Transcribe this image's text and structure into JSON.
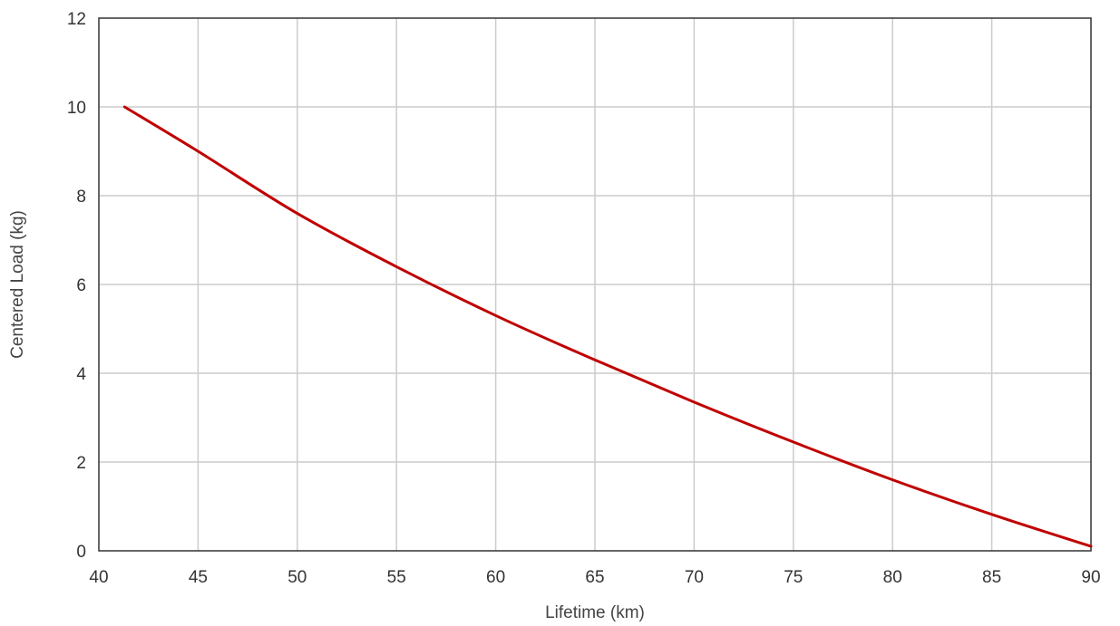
{
  "chart_data": {
    "type": "line",
    "title": "",
    "xlabel": "Lifetime (km)",
    "ylabel": "Centered Load (kg)",
    "xlim": [
      40,
      90
    ],
    "ylim": [
      0,
      12
    ],
    "xticks": [
      40,
      45,
      50,
      55,
      60,
      65,
      70,
      75,
      80,
      85,
      90
    ],
    "yticks": [
      0,
      2,
      4,
      6,
      8,
      10,
      12
    ],
    "grid": true,
    "legend": "none",
    "series": [
      {
        "color": "#c00000",
        "x": [
          41.3,
          45,
          50,
          55,
          60,
          65,
          70,
          75,
          80,
          85,
          90
        ],
        "y": [
          10.0,
          9.0,
          7.6,
          6.4,
          5.3,
          4.3,
          3.35,
          2.45,
          1.6,
          0.82,
          0.1
        ]
      }
    ]
  }
}
